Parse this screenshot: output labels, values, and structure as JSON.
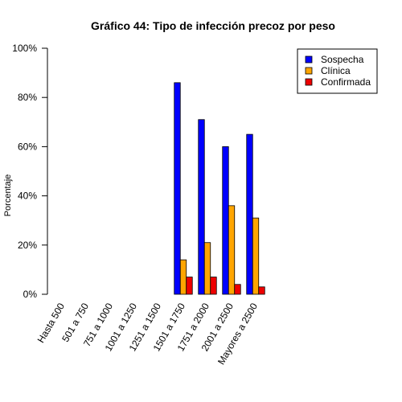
{
  "chart_data": {
    "type": "bar",
    "title": "Gráfico 44: Tipo de infección precoz por peso",
    "xlabel": "",
    "ylabel": "Porcentaje",
    "ylim": [
      0,
      100
    ],
    "yticks": [
      "0%",
      "20%",
      "40%",
      "60%",
      "80%",
      "100%"
    ],
    "grid": false,
    "legend_position": "top-right",
    "categories": [
      "Hasta 500",
      "501 a 750",
      "751 a 1000",
      "1001 a 1250",
      "1251 a 1500",
      "1501 a 1750",
      "1751 a 2000",
      "2001 a 2500",
      "Mayores a 2500"
    ],
    "series": [
      {
        "name": "Sospecha",
        "color": "#0000FF",
        "values": [
          0,
          0,
          0,
          0,
          0,
          86,
          71,
          60,
          65
        ]
      },
      {
        "name": "Clínica",
        "color": "#FFA500",
        "values": [
          0,
          0,
          0,
          0,
          0,
          14,
          21,
          36,
          31
        ]
      },
      {
        "name": "Confirmada",
        "color": "#EE0000",
        "values": [
          0,
          0,
          0,
          0,
          0,
          7,
          7,
          4,
          3
        ]
      }
    ]
  }
}
